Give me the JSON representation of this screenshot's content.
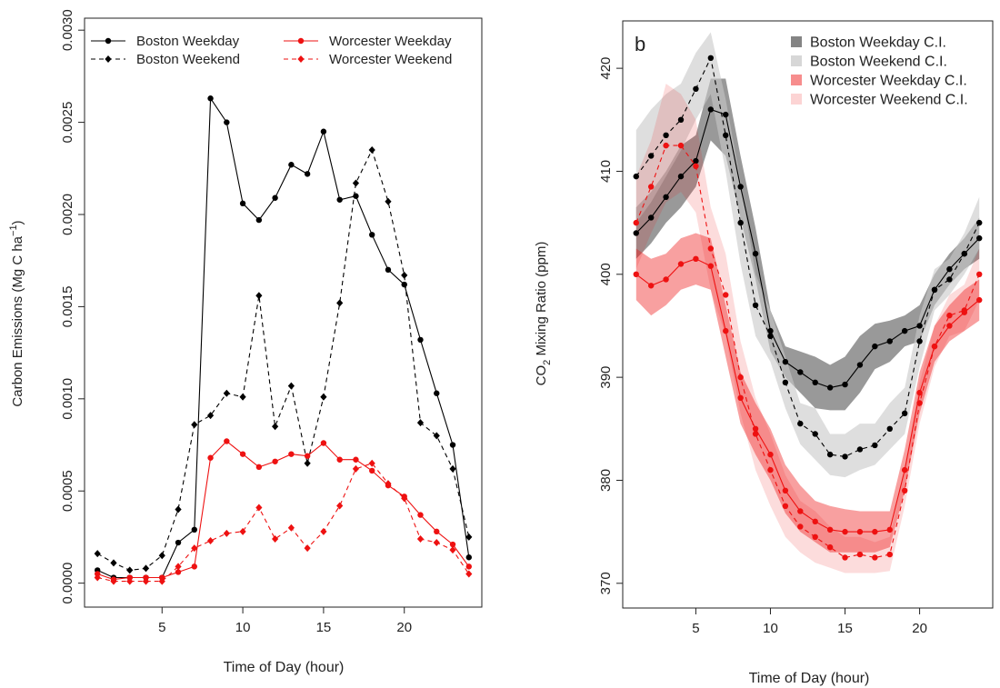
{
  "chart_data": [
    {
      "type": "line",
      "panel_label": "",
      "xlabel": "Time of Day (hour)",
      "ylabel_main": "Carbon Emissions (Mg C ha",
      "ylabel_sup": "−1",
      "ylabel_close": ")",
      "xlim": [
        0.2,
        24.8
      ],
      "ylim": [
        -0.00013,
        0.003065
      ],
      "x_ticks": [
        5,
        10,
        15,
        20
      ],
      "x_tick_labels": [
        "5",
        "10",
        "15",
        "20"
      ],
      "y_ticks": [
        0,
        0.0005,
        0.001,
        0.0015,
        0.002,
        0.0025,
        0.003
      ],
      "y_tick_labels": [
        "0.0000",
        "0.0005",
        "0.0010",
        "0.0015",
        "0.0020",
        "0.0025",
        "0.0030"
      ],
      "legend_position": "top",
      "x": [
        1,
        2,
        3,
        4,
        5,
        6,
        7,
        8,
        9,
        10,
        11,
        12,
        13,
        14,
        15,
        16,
        17,
        18,
        19,
        20,
        21,
        22,
        23,
        24
      ],
      "series": [
        {
          "name": "Boston Weekday",
          "color": "#000000",
          "dash": "solid",
          "marker": "circle",
          "values": [
            7e-05,
            3e-05,
            3e-05,
            3e-05,
            3e-05,
            0.00022,
            0.00029,
            0.00263,
            0.0025,
            0.00206,
            0.00197,
            0.00209,
            0.00227,
            0.00222,
            0.00245,
            0.00208,
            0.0021,
            0.00189,
            0.0017,
            0.00162,
            0.00132,
            0.00103,
            0.00075,
            0.00014
          ]
        },
        {
          "name": "Boston Weekend",
          "color": "#000000",
          "dash": "dashed",
          "marker": "diamond",
          "values": [
            0.00016,
            0.00011,
            7e-05,
            8e-05,
            0.00015,
            0.0004,
            0.00086,
            0.00091,
            0.00103,
            0.00101,
            0.00156,
            0.00085,
            0.00107,
            0.00065,
            0.00101,
            0.00152,
            0.00217,
            0.00235,
            0.00207,
            0.00167,
            0.00087,
            0.0008,
            0.00062,
            0.00025
          ]
        },
        {
          "name": "Worcester Weekday",
          "color": "#ee1111",
          "dash": "solid",
          "marker": "circle",
          "values": [
            5e-05,
            2e-05,
            3e-05,
            3e-05,
            3e-05,
            6e-05,
            9e-05,
            0.00068,
            0.00077,
            0.0007,
            0.00063,
            0.00066,
            0.0007,
            0.00069,
            0.00076,
            0.00067,
            0.00067,
            0.00061,
            0.00053,
            0.00047,
            0.00037,
            0.00028,
            0.00021,
            9e-05
          ]
        },
        {
          "name": "Worcester Weekend",
          "color": "#ee1111",
          "dash": "dashed",
          "marker": "diamond",
          "values": [
            3e-05,
            1e-05,
            1e-05,
            1e-05,
            1e-05,
            9e-05,
            0.00019,
            0.00023,
            0.00027,
            0.00028,
            0.00041,
            0.00024,
            0.0003,
            0.00019,
            0.00028,
            0.00042,
            0.00062,
            0.00065,
            0.00054,
            0.00046,
            0.00024,
            0.00022,
            0.00018,
            5e-05
          ]
        }
      ]
    },
    {
      "type": "line",
      "panel_label": "b",
      "xlabel": "Time of Day (hour)",
      "ylabel_main": "CO",
      "ylabel_sub": "2",
      "ylabel_rest": " Mixing Ratio (ppm)",
      "xlim": [
        0.1,
        24.9
      ],
      "ylim": [
        367.6,
        424.6
      ],
      "x_ticks": [
        5,
        10,
        15,
        20
      ],
      "x_tick_labels": [
        "5",
        "10",
        "15",
        "20"
      ],
      "y_ticks": [
        370,
        380,
        390,
        400,
        410,
        420
      ],
      "y_tick_labels": [
        "370",
        "380",
        "390",
        "400",
        "410",
        "420"
      ],
      "legend_position": "top-right",
      "x": [
        1,
        2,
        3,
        4,
        5,
        6,
        7,
        8,
        9,
        10,
        11,
        12,
        13,
        14,
        15,
        16,
        17,
        18,
        19,
        20,
        21,
        22,
        23,
        24
      ],
      "series": [
        {
          "name": "Boston Weekday C.I.",
          "line_color": "#000000",
          "dash": "solid",
          "band_color": "#555555",
          "band_opacity": 0.6,
          "values": [
            404,
            405.5,
            407.5,
            409.5,
            411,
            416,
            415.5,
            408.5,
            402,
            394.5,
            391.5,
            390.5,
            389.5,
            389,
            389.3,
            391.2,
            393,
            393.5,
            394.5,
            395,
            398.5,
            400.5,
            402,
            403.5
          ],
          "lower": [
            401.5,
            403,
            405,
            406.5,
            408.5,
            413,
            411.5,
            405.5,
            399.5,
            392.5,
            390,
            388.5,
            387,
            386.8,
            386.8,
            388.5,
            390.8,
            391.5,
            393,
            393.5,
            397,
            399,
            400.5,
            401.5
          ],
          "upper": [
            406.5,
            408,
            410,
            412.5,
            413.5,
            419,
            419,
            411.5,
            404.5,
            396.5,
            393,
            392.5,
            392,
            391.2,
            392,
            394,
            395.2,
            395.5,
            396,
            397,
            400,
            402,
            403.5,
            405.5
          ]
        },
        {
          "name": "Boston Weekend C.I.",
          "line_color": "#000000",
          "dash": "dashed",
          "band_color": "#c8c8c8",
          "band_opacity": 0.6,
          "values": [
            409.5,
            411.5,
            413.5,
            415,
            418,
            421,
            413.5,
            405,
            397,
            394,
            389.5,
            385.5,
            384.5,
            382.5,
            382.3,
            383,
            383.4,
            385,
            386.5,
            393.5,
            398.5,
            399.5,
            402,
            405
          ],
          "lower": [
            405,
            407,
            409.5,
            412,
            415,
            417.5,
            410,
            401,
            394,
            391.5,
            387,
            383.5,
            382,
            380.5,
            380.3,
            381,
            381.5,
            383,
            384.5,
            391,
            396.5,
            398,
            400,
            402.5
          ],
          "upper": [
            414,
            416,
            417.5,
            418.5,
            421.5,
            423.5,
            417,
            409,
            400,
            396.5,
            392,
            387.5,
            387,
            384.5,
            384.5,
            385.5,
            385.5,
            387.5,
            389,
            396,
            400.5,
            401.5,
            404,
            407.5
          ]
        },
        {
          "name": "Worcester Weekday C.I.",
          "line_color": "#ee1111",
          "dash": "solid",
          "band_color": "#ee1111",
          "band_opacity": 0.4,
          "values": [
            400,
            398.9,
            399.5,
            401,
            401.5,
            400.8,
            394.5,
            388,
            385,
            382.5,
            379,
            377,
            376,
            375.2,
            375,
            375,
            375,
            375.2,
            381,
            388.5,
            393,
            395,
            396.3,
            397.5
          ],
          "lower": [
            397.5,
            396,
            397,
            398.5,
            399,
            398.5,
            392,
            385.5,
            382.5,
            380,
            376.8,
            375,
            374,
            373,
            373,
            373,
            373,
            373.5,
            379,
            386.5,
            391.5,
            393.5,
            394.5,
            395.5
          ],
          "upper": [
            402.5,
            401.5,
            402,
            403.5,
            404,
            403.5,
            397,
            390.5,
            387.5,
            385,
            381.5,
            379.5,
            378,
            377.5,
            377.2,
            377,
            377,
            377,
            383,
            390.5,
            395,
            397,
            398.5,
            399.5
          ]
        },
        {
          "name": "Worcester Weekend C.I.",
          "line_color": "#ee1111",
          "dash": "dashed",
          "band_color": "#ee1111",
          "band_opacity": 0.15,
          "values": [
            405,
            408.5,
            412.5,
            412.5,
            410.5,
            402.5,
            398,
            390,
            384.5,
            381,
            377.5,
            375.5,
            374.5,
            373.5,
            372.5,
            372.8,
            372.5,
            372.8,
            379,
            387.5,
            393,
            396,
            396.5,
            400
          ],
          "lower": [
            400.5,
            404,
            407,
            408,
            406,
            398.5,
            394,
            386.5,
            381,
            377.5,
            374.5,
            373,
            372,
            371.5,
            371,
            371,
            371,
            371.2,
            377.5,
            385.5,
            391,
            394,
            394.5,
            397.5
          ],
          "upper": [
            409.5,
            413,
            418.5,
            417.5,
            415,
            406.5,
            402,
            393.5,
            388,
            384.5,
            380.5,
            378,
            377,
            375.5,
            374.5,
            374.5,
            374,
            374.5,
            381,
            389.5,
            395,
            398,
            399,
            402.5
          ]
        }
      ]
    }
  ]
}
